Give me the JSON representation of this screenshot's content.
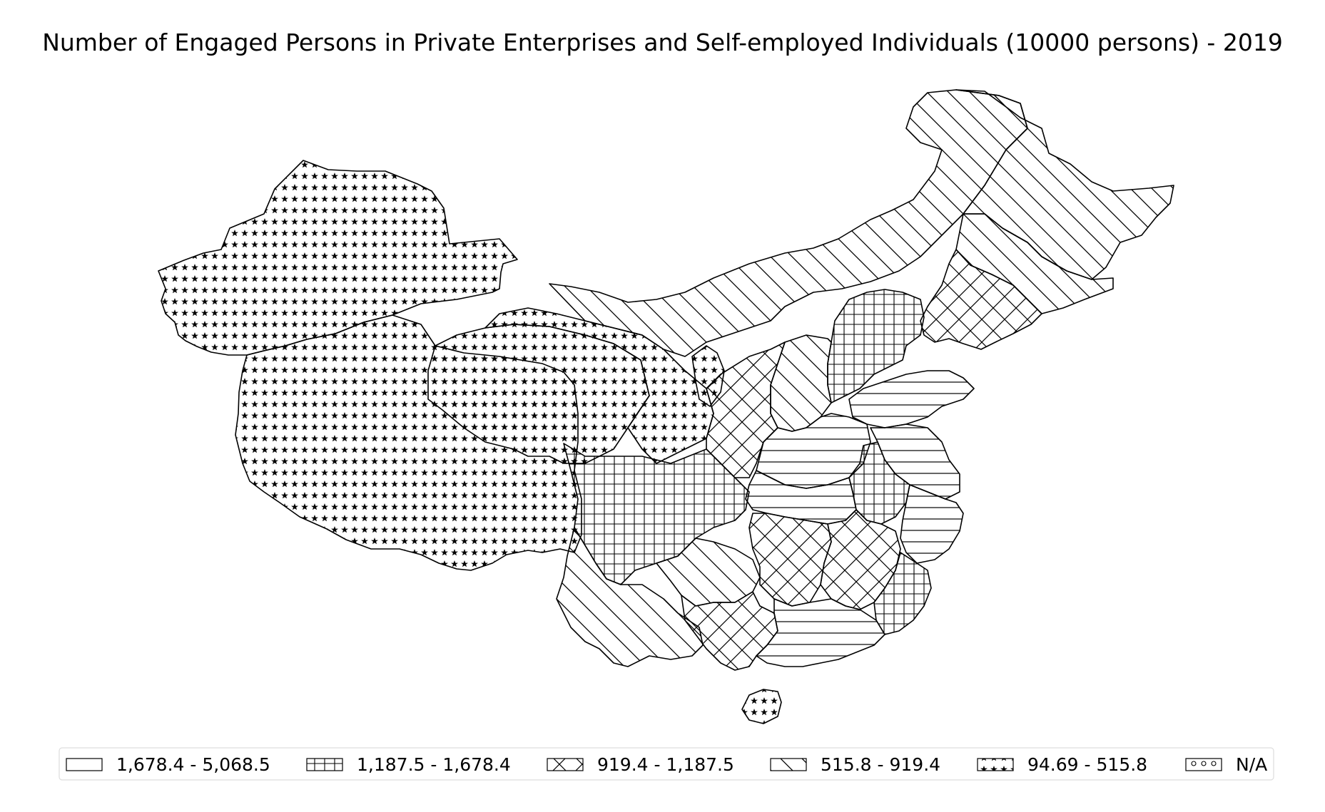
{
  "title": "Number of Engaged Persons in Private Enterprises and Self-employed Individuals (10000 persons) - 2019",
  "map": {
    "type": "choropleth",
    "region": "China (provinces)",
    "colors": {
      "stroke": "#000000",
      "fill": "#ffffff"
    }
  },
  "legend": {
    "placement": "bottom",
    "items": [
      {
        "label": "1,678.4 - 5,068.5",
        "pattern": "blank"
      },
      {
        "label": "1,187.5 - 1,678.4",
        "pattern": "grid"
      },
      {
        "label": "919.4 - 1,187.5",
        "pattern": "crosshatch"
      },
      {
        "label": "515.8 - 919.4",
        "pattern": "diagonal"
      },
      {
        "label": "94.69 - 515.8",
        "pattern": "stars"
      },
      {
        "label": "N/A",
        "pattern": "circles"
      }
    ]
  }
}
